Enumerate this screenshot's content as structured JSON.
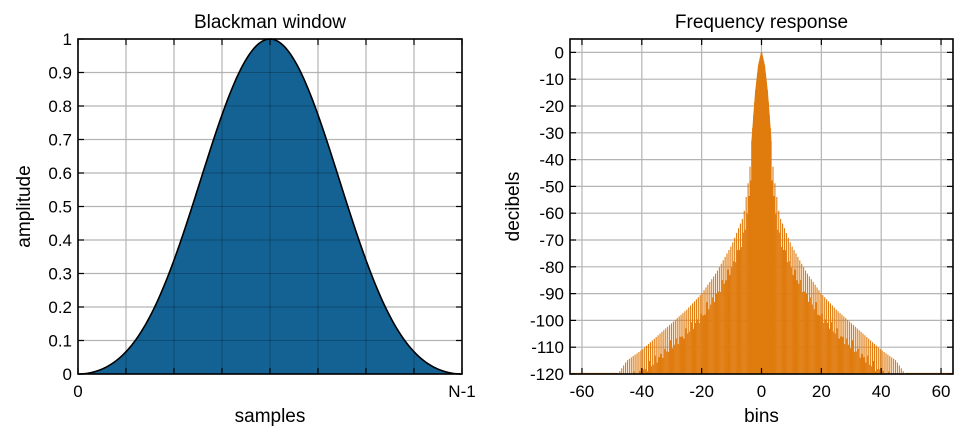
{
  "chart_data": [
    {
      "type": "area",
      "title": "Blackman window",
      "xlabel": "samples",
      "ylabel": "amplitude",
      "xlim": [
        0,
        1
      ],
      "ylim": [
        0,
        1
      ],
      "x_ticks": [
        {
          "value": 0,
          "label": "0"
        },
        {
          "value": 1,
          "label": "N-1"
        }
      ],
      "x_grid": [
        0,
        0.125,
        0.25,
        0.375,
        0.5,
        0.625,
        0.75,
        0.875,
        1
      ],
      "y_ticks": [
        0,
        0.1,
        0.2,
        0.3,
        0.4,
        0.5,
        0.6,
        0.7,
        0.8,
        0.9,
        1
      ],
      "y_tick_labels": [
        "0",
        "0.1",
        "0.2",
        "0.3",
        "0.4",
        "0.5",
        "0.6",
        "0.7",
        "0.8",
        "0.9",
        "1"
      ],
      "grid": true,
      "color": "#0e5f91",
      "series": [
        {
          "x": [
            0,
            0.05,
            0.1,
            0.15,
            0.2,
            0.25,
            0.3,
            0.35,
            0.4,
            0.45,
            0.5,
            0.55,
            0.6,
            0.65,
            0.7,
            0.75,
            0.8,
            0.85,
            0.9,
            0.95,
            1
          ],
          "values": [
            0,
            0.0102,
            0.0451,
            0.1143,
            0.2258,
            0.38,
            0.5668,
            0.7615,
            0.9206,
            0.9923,
            1.0,
            0.9923,
            0.9206,
            0.7615,
            0.5668,
            0.38,
            0.2258,
            0.1143,
            0.0451,
            0.0102,
            0
          ]
        }
      ]
    },
    {
      "type": "area",
      "title": "Frequency response",
      "xlabel": "bins",
      "ylabel": "decibels",
      "xlim": [
        -64,
        64
      ],
      "ylim": [
        -120,
        5
      ],
      "x_ticks": [
        -60,
        -40,
        -20,
        0,
        20,
        40,
        60
      ],
      "x_tick_labels": [
        "-60",
        "-40",
        "-20",
        "0",
        "20",
        "40",
        "60"
      ],
      "y_ticks": [
        0,
        -10,
        -20,
        -30,
        -40,
        -50,
        -60,
        -70,
        -80,
        -90,
        -100,
        -110,
        -120
      ],
      "y_tick_labels": [
        "0",
        "-10",
        "-20",
        "-30",
        "-40",
        "-50",
        "-60",
        "-70",
        "-80",
        "-90",
        "-100",
        "-110",
        "-120"
      ],
      "grid": true,
      "color": "#e07b0e",
      "series": [
        {
          "x": [
            -48,
            -45,
            -40,
            -35,
            -30,
            -25,
            -20,
            -15,
            -10,
            -6,
            -4,
            -3,
            -2,
            -1,
            0,
            1,
            2,
            3,
            4,
            6,
            10,
            15,
            20,
            25,
            30,
            35,
            40,
            45,
            48
          ],
          "values": [
            -120,
            -115,
            -111,
            -106,
            -101,
            -96,
            -90,
            -82,
            -72,
            -61,
            -45,
            -30,
            -15,
            -5,
            0,
            -5,
            -15,
            -30,
            -45,
            -61,
            -72,
            -82,
            -90,
            -96,
            -101,
            -106,
            -111,
            -115,
            -120
          ]
        }
      ]
    }
  ]
}
